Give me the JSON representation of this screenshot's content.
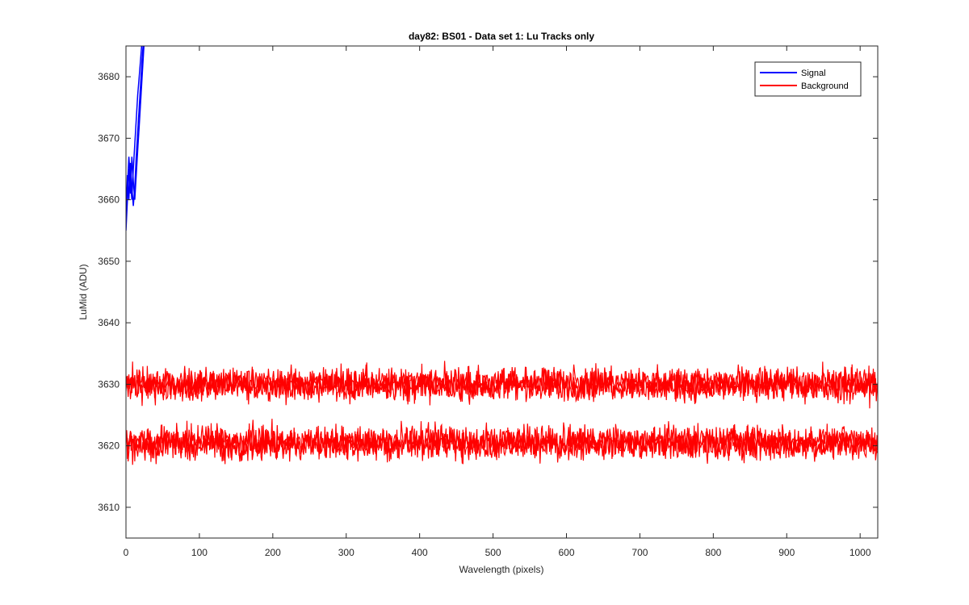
{
  "chart_data": {
    "type": "line",
    "title": "day82: BS01 - Data set 1: Lu Tracks only",
    "xlabel": "Wavelength (pixels)",
    "ylabel": "LuMid (ADU)",
    "xlim": [
      0,
      1024
    ],
    "ylim": [
      3605,
      3685
    ],
    "xticks": [
      0,
      100,
      200,
      300,
      400,
      500,
      600,
      700,
      800,
      900,
      1000
    ],
    "yticks": [
      3610,
      3620,
      3630,
      3640,
      3650,
      3660,
      3670,
      3680
    ],
    "grid": false,
    "legend_position": "top-right",
    "series": [
      {
        "name": "Signal",
        "color": "#0000ff",
        "traces": [
          {
            "x": [
              0,
              2,
              4,
              6,
              8,
              10,
              12,
              14,
              16,
              18,
              20,
              22,
              24,
              26
            ],
            "y": [
              3655,
              3660,
              3665,
              3661,
              3667,
              3663,
              3660,
              3664,
              3668,
              3672,
              3676,
              3680,
              3684,
              3688
            ]
          },
          {
            "x": [
              0,
              2,
              4,
              6,
              8,
              10,
              12,
              14,
              16,
              18,
              20,
              22,
              24,
              26
            ],
            "y": [
              3657,
              3664,
              3660,
              3666,
              3662,
              3659,
              3662,
              3667,
              3671,
              3675,
              3679,
              3683,
              3686,
              3689
            ]
          },
          {
            "x": [
              0,
              2,
              4,
              6,
              8,
              10,
              12,
              14,
              16,
              18,
              20,
              22,
              24,
              26
            ],
            "y": [
              3659,
              3662,
              3667,
              3663,
              3660,
              3665,
              3669,
              3673,
              3677,
              3680,
              3683,
              3686,
              3688,
              3690
            ]
          }
        ]
      },
      {
        "name": "Background",
        "color": "#ff0000",
        "bands": [
          {
            "mean": 3630,
            "noise": 2.2,
            "traces": 3
          },
          {
            "mean": 3620.5,
            "noise": 2.2,
            "traces": 3
          }
        ],
        "x_range": [
          0,
          1024
        ]
      }
    ]
  }
}
